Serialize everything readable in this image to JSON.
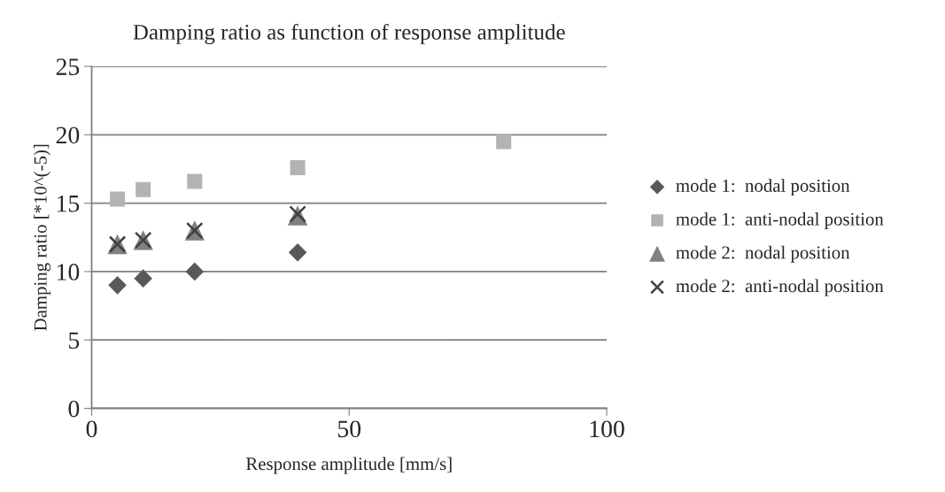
{
  "chart_data": {
    "type": "scatter",
    "title": "Damping ratio as function of response amplitude",
    "xlabel": "Response amplitude [mm/s]",
    "ylabel": "Damping ratio [*10^(-5)]",
    "xlim": [
      0,
      100
    ],
    "xticks": [
      0,
      50,
      100
    ],
    "ylim": [
      0,
      25
    ],
    "yticks": [
      0,
      5,
      10,
      15,
      20,
      25
    ],
    "grid": "y",
    "legend": "right",
    "series": [
      {
        "name": "mode 1:  nodal position",
        "color": "#595959",
        "marker": "diamond",
        "x": [
          5,
          10,
          20,
          40
        ],
        "values": [
          9.0,
          9.5,
          10.0,
          11.4
        ]
      },
      {
        "name": "mode 1:  anti-nodal position",
        "color": "#b3b3b3",
        "marker": "square",
        "x": [
          5,
          10,
          20,
          40,
          80
        ],
        "values": [
          15.3,
          16.0,
          16.6,
          17.6,
          19.5
        ]
      },
      {
        "name": "mode 2:  nodal position",
        "color": "#808080",
        "marker": "triangle",
        "x": [
          5,
          10,
          20,
          40
        ],
        "values": [
          12.0,
          12.3,
          13.0,
          14.1
        ]
      },
      {
        "name": "mode 2:  anti-nodal position",
        "color": "#404040",
        "marker": "cross",
        "x": [
          5,
          10,
          20,
          40
        ],
        "values": [
          12.0,
          12.3,
          13.0,
          14.2
        ]
      }
    ]
  }
}
